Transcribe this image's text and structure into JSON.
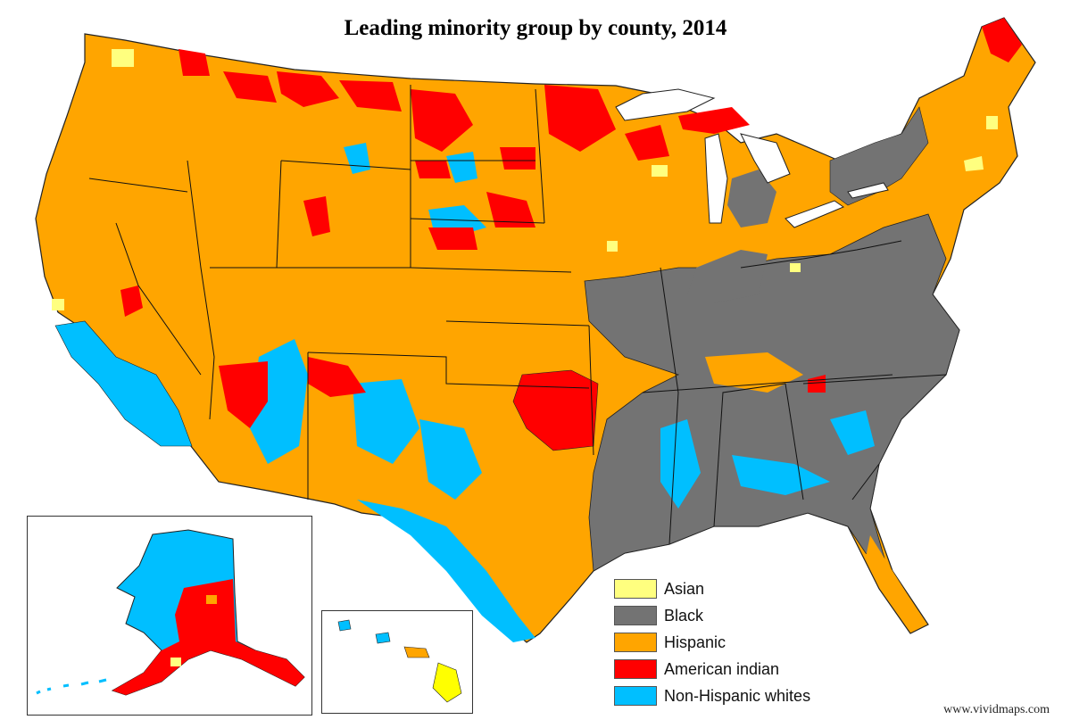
{
  "title": "Leading minority group by county, 2014",
  "credit": "www.vividmaps.com",
  "colors": {
    "asian": "#ffff7f",
    "black": "#737373",
    "hispanic": "#ffa500",
    "american_indian": "#ff0000",
    "non_hispanic_whites": "#00bfff",
    "border": "#222222"
  },
  "legend": [
    {
      "label": "Asian",
      "color": "#ffff7f"
    },
    {
      "label": "Black",
      "color": "#737373"
    },
    {
      "label": "Hispanic",
      "color": "#ffa500"
    },
    {
      "label": "American indian",
      "color": "#ff0000"
    },
    {
      "label": "Non-Hispanic whites",
      "color": "#00bfff"
    }
  ]
}
